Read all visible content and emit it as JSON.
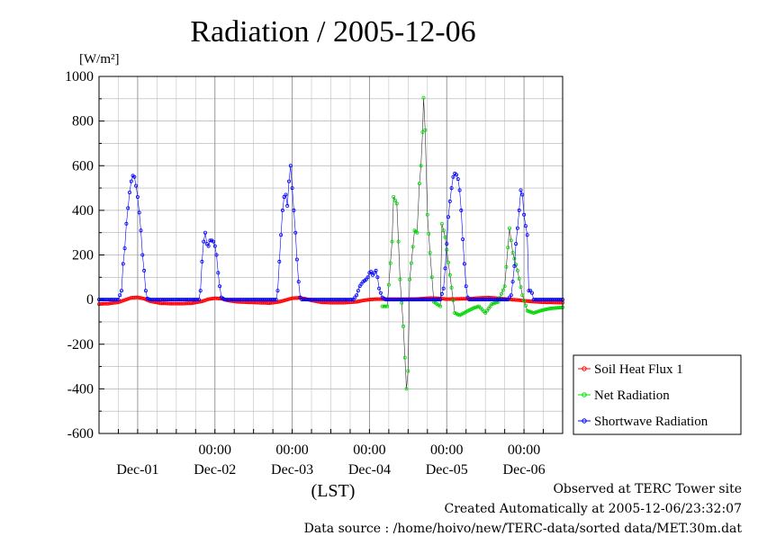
{
  "chart_data": {
    "type": "line",
    "title": "Radiation / 2005-12-06",
    "ylabel": "[W/m²]",
    "xlabel": "(LST)",
    "ylim": [
      -600,
      1000
    ],
    "yticks": [
      1000,
      800,
      600,
      400,
      200,
      0,
      -200,
      -400,
      -600
    ],
    "xlim": [
      0,
      144
    ],
    "time_ticks": [
      "00:00",
      "00:00",
      "00:00",
      "00:00",
      "00:00"
    ],
    "date_labels": [
      "Dec-01",
      "Dec-02",
      "Dec-03",
      "Dec-04",
      "Dec-05",
      "Dec-06"
    ],
    "grid": true,
    "legend_position": "right",
    "series": [
      {
        "name": "Soil Heat Flux 1",
        "color": "#ff0000",
        "marker": "circle",
        "points": [
          [
            0,
            -20
          ],
          [
            3,
            -18
          ],
          [
            6,
            -12
          ],
          [
            8,
            -2
          ],
          [
            10,
            8
          ],
          [
            12,
            10
          ],
          [
            14,
            4
          ],
          [
            16,
            -8
          ],
          [
            19,
            -16
          ],
          [
            22,
            -18
          ],
          [
            26,
            -18
          ],
          [
            29,
            -16
          ],
          [
            32,
            -8
          ],
          [
            34,
            2
          ],
          [
            36,
            6
          ],
          [
            38,
            4
          ],
          [
            40,
            -4
          ],
          [
            43,
            -10
          ],
          [
            46,
            -12
          ],
          [
            50,
            -14
          ],
          [
            53,
            -16
          ],
          [
            56,
            -10
          ],
          [
            58,
            -2
          ],
          [
            60,
            6
          ],
          [
            62,
            8
          ],
          [
            64,
            4
          ],
          [
            66,
            -4
          ],
          [
            69,
            -12
          ],
          [
            72,
            -14
          ],
          [
            76,
            -14
          ],
          [
            80,
            -10
          ],
          [
            82,
            -4
          ],
          [
            84,
            0
          ],
          [
            86,
            2
          ],
          [
            88,
            2
          ],
          [
            92,
            2
          ],
          [
            96,
            2
          ],
          [
            99,
            3
          ],
          [
            101,
            5
          ],
          [
            103,
            7
          ],
          [
            105,
            6
          ],
          [
            108,
            2
          ],
          [
            112,
            3
          ],
          [
            115,
            4
          ],
          [
            117,
            6
          ],
          [
            119,
            8
          ],
          [
            121,
            9
          ],
          [
            123,
            7
          ],
          [
            126,
            3
          ],
          [
            130,
            -2
          ],
          [
            134,
            -8
          ],
          [
            138,
            -12
          ],
          [
            144,
            -14
          ]
        ]
      },
      {
        "name": "Net Radiation",
        "color": "#00dd00",
        "marker": "circle",
        "points": [
          [
            88,
            -30
          ],
          [
            89.5,
            -30
          ],
          [
            91,
            260
          ],
          [
            91.5,
            460
          ],
          [
            92.5,
            430
          ],
          [
            93.5,
            90
          ],
          [
            94.5,
            -120
          ],
          [
            95.5,
            -400
          ],
          [
            96,
            -320
          ],
          [
            96.5,
            90
          ],
          [
            98,
            310
          ],
          [
            98.8,
            300
          ],
          [
            99.5,
            520
          ],
          [
            100,
            600
          ],
          [
            100.5,
            750
          ],
          [
            100.8,
            905
          ],
          [
            101.3,
            760
          ],
          [
            102,
            380
          ],
          [
            102.8,
            210
          ],
          [
            104,
            -10
          ],
          [
            106,
            -30
          ],
          [
            106.5,
            340
          ],
          [
            107.5,
            280
          ],
          [
            109,
            110
          ],
          [
            110.5,
            -60
          ],
          [
            112,
            -70
          ],
          [
            114,
            -55
          ],
          [
            116,
            -40
          ],
          [
            118,
            -30
          ],
          [
            120,
            -60
          ],
          [
            122,
            -20
          ],
          [
            124,
            -10
          ],
          [
            126,
            60
          ],
          [
            127.5,
            320
          ],
          [
            128.5,
            210
          ],
          [
            130,
            130
          ],
          [
            131.5,
            20
          ],
          [
            133,
            -50
          ],
          [
            135,
            -60
          ],
          [
            137,
            -50
          ],
          [
            140,
            -40
          ],
          [
            144,
            -35
          ]
        ]
      },
      {
        "name": "Shortwave Radiation",
        "color": "#0000ff",
        "marker": "circle",
        "points": [
          [
            0,
            0
          ],
          [
            6,
            0
          ],
          [
            7,
            40
          ],
          [
            7.5,
            160
          ],
          [
            8,
            230
          ],
          [
            8.5,
            340
          ],
          [
            9,
            410
          ],
          [
            9.5,
            480
          ],
          [
            10,
            530
          ],
          [
            10.5,
            555
          ],
          [
            11,
            550
          ],
          [
            11.5,
            510
          ],
          [
            12,
            460
          ],
          [
            12.5,
            390
          ],
          [
            13,
            310
          ],
          [
            13.5,
            200
          ],
          [
            14,
            130
          ],
          [
            14.5,
            40
          ],
          [
            15,
            5
          ],
          [
            16,
            0
          ],
          [
            31,
            0
          ],
          [
            31.5,
            40
          ],
          [
            32,
            170
          ],
          [
            32.5,
            260
          ],
          [
            33,
            300
          ],
          [
            33.5,
            250
          ],
          [
            34,
            240
          ],
          [
            34.5,
            265
          ],
          [
            35,
            265
          ],
          [
            35.5,
            260
          ],
          [
            36,
            240
          ],
          [
            36.5,
            200
          ],
          [
            37,
            120
          ],
          [
            37.5,
            60
          ],
          [
            38,
            10
          ],
          [
            39,
            0
          ],
          [
            55,
            0
          ],
          [
            55.5,
            40
          ],
          [
            56,
            170
          ],
          [
            56.5,
            290
          ],
          [
            57,
            400
          ],
          [
            57.5,
            460
          ],
          [
            58,
            470
          ],
          [
            58.5,
            420
          ],
          [
            59,
            530
          ],
          [
            59.5,
            600
          ],
          [
            60,
            500
          ],
          [
            60.5,
            400
          ],
          [
            61,
            300
          ],
          [
            61.5,
            180
          ],
          [
            62,
            80
          ],
          [
            62.5,
            10
          ],
          [
            63,
            0
          ],
          [
            79,
            0
          ],
          [
            80,
            20
          ],
          [
            81,
            60
          ],
          [
            82,
            80
          ],
          [
            83,
            90
          ],
          [
            83.5,
            100
          ],
          [
            84,
            120
          ],
          [
            84.5,
            125
          ],
          [
            85,
            110
          ],
          [
            86,
            130
          ],
          [
            86.5,
            100
          ],
          [
            87,
            50
          ],
          [
            88,
            10
          ],
          [
            89,
            0
          ],
          [
            106,
            0
          ],
          [
            107,
            50
          ],
          [
            107.5,
            140
          ],
          [
            108,
            250
          ],
          [
            108.5,
            370
          ],
          [
            109,
            440
          ],
          [
            109.5,
            500
          ],
          [
            110,
            550
          ],
          [
            110.5,
            565
          ],
          [
            111,
            560
          ],
          [
            111.5,
            540
          ],
          [
            112,
            490
          ],
          [
            112.5,
            400
          ],
          [
            113,
            270
          ],
          [
            113.5,
            160
          ],
          [
            114,
            60
          ],
          [
            114.5,
            10
          ],
          [
            115,
            0
          ],
          [
            127,
            0
          ],
          [
            128,
            20
          ],
          [
            128.5,
            80
          ],
          [
            129,
            150
          ],
          [
            129.5,
            250
          ],
          [
            130,
            320
          ],
          [
            130.5,
            400
          ],
          [
            131,
            490
          ],
          [
            131.5,
            470
          ],
          [
            132,
            380
          ],
          [
            132.5,
            330
          ],
          [
            133,
            290
          ],
          [
            133.5,
            40
          ],
          [
            134,
            40
          ],
          [
            134.5,
            30
          ],
          [
            135,
            0
          ],
          [
            144,
            0
          ]
        ]
      }
    ]
  },
  "captions": {
    "site": "Observed at TERC Tower site",
    "created": "Created Automatically at 2005-12-06/23:32:07",
    "source": "Data source : /home/hoivo/new/TERC-data/sorted  data/MET.30m.dat"
  }
}
